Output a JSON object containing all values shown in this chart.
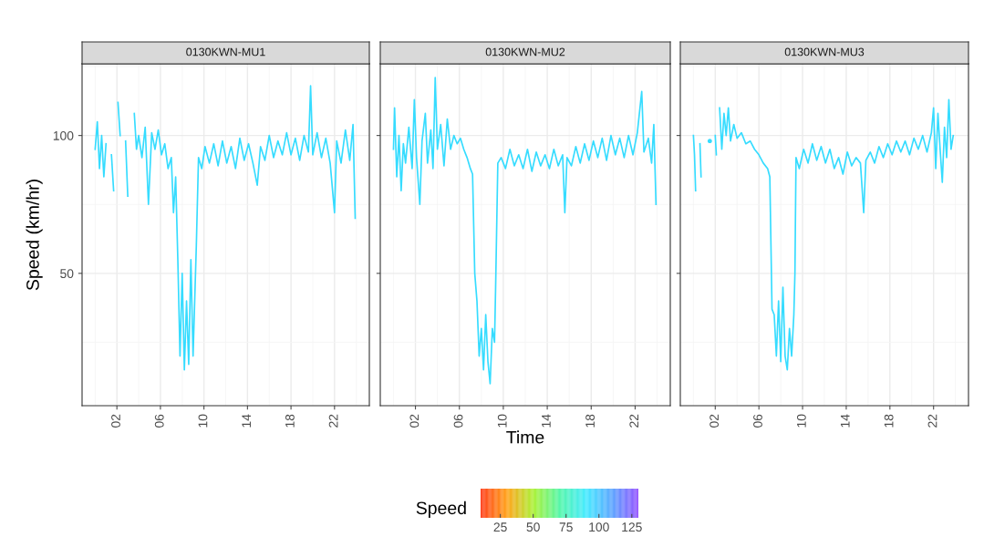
{
  "chart_data": [
    {
      "type": "line",
      "title": "0130KWN-MU1",
      "ylabel": "Speed (km/hr)",
      "xlim": [
        -1.2,
        25.2
      ],
      "ylim": [
        2,
        126
      ],
      "xticks": [
        {
          "value": 2,
          "label": "02"
        },
        {
          "value": 6,
          "label": "06"
        },
        {
          "value": 10,
          "label": "10"
        },
        {
          "value": 14,
          "label": "14"
        },
        {
          "value": 18,
          "label": "18"
        },
        {
          "value": 22,
          "label": "22"
        }
      ],
      "yticks": [
        50,
        100
      ],
      "grid": true,
      "color": "#36dcff",
      "x": [
        0.0,
        0.2,
        0.4,
        0.6,
        0.8,
        1.0,
        1.2,
        1.5,
        1.7,
        1.9,
        2.1,
        2.3,
        2.5,
        2.8,
        3.0,
        3.2,
        3.6,
        3.8,
        4.0,
        4.3,
        4.6,
        4.9,
        5.2,
        5.5,
        5.8,
        6.1,
        6.4,
        6.7,
        7.0,
        7.2,
        7.4,
        7.6,
        7.8,
        8.0,
        8.2,
        8.4,
        8.6,
        8.8,
        9.0,
        9.3,
        9.5,
        9.8,
        10.1,
        10.5,
        10.9,
        11.3,
        11.7,
        12.1,
        12.5,
        12.9,
        13.3,
        13.7,
        14.1,
        14.5,
        14.9,
        15.2,
        15.6,
        16.0,
        16.4,
        16.8,
        17.2,
        17.6,
        18.0,
        18.4,
        18.8,
        19.2,
        19.6,
        19.8,
        20.0,
        20.4,
        20.8,
        21.2,
        21.6,
        22.0,
        22.2,
        22.6,
        23.0,
        23.4,
        23.7,
        23.9
      ],
      "values": [
        95,
        105,
        88,
        100,
        85,
        97,
        null,
        93,
        80,
        null,
        112,
        100,
        null,
        98,
        78,
        null,
        108,
        95,
        100,
        92,
        103,
        75,
        101,
        95,
        102,
        93,
        97,
        88,
        92,
        72,
        85,
        55,
        20,
        50,
        15,
        40,
        17,
        55,
        20,
        60,
        92,
        88,
        96,
        90,
        97,
        89,
        98,
        90,
        96,
        88,
        99,
        91,
        97,
        90,
        82,
        96,
        91,
        100,
        92,
        98,
        93,
        101,
        93,
        99,
        91,
        100,
        94,
        118,
        93,
        101,
        92,
        99,
        90,
        72,
        98,
        90,
        102,
        91,
        104,
        70
      ]
    },
    {
      "type": "line",
      "title": "0130KWN-MU2",
      "xlabel": "Time",
      "clabel": "Speed",
      "xlim": [
        -1.2,
        25.2
      ],
      "ylim": [
        2,
        126
      ],
      "xticks": [
        {
          "value": 2,
          "label": "02"
        },
        {
          "value": 6,
          "label": "06"
        },
        {
          "value": 10,
          "label": "10"
        },
        {
          "value": 14,
          "label": "14"
        },
        {
          "value": 18,
          "label": "18"
        },
        {
          "value": 22,
          "label": "22"
        }
      ],
      "yticks": [
        50,
        100
      ],
      "tick_labels": "x",
      "grid": true,
      "color": "#36dcff",
      "clim": [
        10,
        130
      ],
      "cticks": [
        25,
        50,
        75,
        100,
        125
      ],
      "x": [
        0.0,
        0.1,
        0.3,
        0.5,
        0.7,
        0.9,
        1.1,
        1.4,
        1.7,
        1.9,
        2.1,
        2.4,
        2.6,
        2.9,
        3.1,
        3.4,
        3.6,
        3.8,
        4.0,
        4.3,
        4.6,
        4.9,
        5.2,
        5.5,
        5.8,
        6.1,
        6.4,
        6.7,
        7.0,
        7.2,
        7.4,
        7.6,
        7.8,
        8.0,
        8.2,
        8.4,
        8.6,
        8.8,
        9.0,
        9.2,
        9.3,
        9.5,
        9.8,
        10.2,
        10.6,
        11.0,
        11.4,
        11.8,
        12.2,
        12.6,
        13.0,
        13.4,
        13.8,
        14.2,
        14.6,
        15.0,
        15.4,
        15.6,
        15.8,
        16.2,
        16.6,
        17.0,
        17.4,
        17.8,
        18.2,
        18.6,
        19.0,
        19.4,
        19.8,
        20.2,
        20.6,
        21.0,
        21.4,
        21.8,
        22.2,
        22.6,
        22.8,
        23.2,
        23.5,
        23.7,
        23.9
      ],
      "values": [
        95,
        110,
        85,
        100,
        80,
        97,
        90,
        103,
        88,
        113,
        92,
        75,
        98,
        108,
        90,
        102,
        88,
        121,
        95,
        104,
        89,
        106,
        95,
        100,
        97,
        99,
        95,
        92,
        88,
        86,
        50,
        40,
        20,
        30,
        15,
        35,
        18,
        10,
        30,
        25,
        45,
        90,
        92,
        88,
        95,
        89,
        93,
        88,
        95,
        87,
        94,
        89,
        93,
        88,
        95,
        89,
        93,
        72,
        92,
        89,
        96,
        90,
        97,
        91,
        98,
        92,
        99,
        91,
        100,
        93,
        99,
        92,
        100,
        93,
        101,
        116,
        94,
        99,
        90,
        104,
        75
      ]
    },
    {
      "type": "line",
      "title": "0130KWN-MU3",
      "xlim": [
        -1.2,
        25.2
      ],
      "ylim": [
        2,
        126
      ],
      "xticks": [
        {
          "value": 2,
          "label": "02"
        },
        {
          "value": 6,
          "label": "06"
        },
        {
          "value": 10,
          "label": "10"
        },
        {
          "value": 14,
          "label": "14"
        },
        {
          "value": 18,
          "label": "18"
        },
        {
          "value": 22,
          "label": "22"
        }
      ],
      "yticks": [
        50,
        100
      ],
      "tick_labels": "x",
      "grid": true,
      "color": "#36dcff",
      "x": [
        0.0,
        0.1,
        0.2,
        0.3,
        0.6,
        0.7,
        0.8,
        1.5,
        1.6,
        2.0,
        2.1,
        2.2,
        2.4,
        2.6,
        2.8,
        3.0,
        3.2,
        3.4,
        3.7,
        4.0,
        4.4,
        4.8,
        5.2,
        5.6,
        6.0,
        6.4,
        6.8,
        7.0,
        7.2,
        7.4,
        7.6,
        7.8,
        8.0,
        8.2,
        8.4,
        8.6,
        8.8,
        9.0,
        9.2,
        9.3,
        9.4,
        9.7,
        10.1,
        10.5,
        10.9,
        11.3,
        11.7,
        12.1,
        12.5,
        12.9,
        13.3,
        13.7,
        14.1,
        14.5,
        14.9,
        15.3,
        15.6,
        15.8,
        16.2,
        16.6,
        17.0,
        17.4,
        17.8,
        18.2,
        18.6,
        19.0,
        19.4,
        19.8,
        20.2,
        20.6,
        21.0,
        21.4,
        21.8,
        22.0,
        22.2,
        22.4,
        22.6,
        22.8,
        23.0,
        23.2,
        23.4,
        23.6,
        23.8
      ],
      "values": [
        100,
        93,
        80,
        null,
        97,
        85,
        null,
        98,
        null,
        100,
        93,
        null,
        110,
        95,
        108,
        100,
        110,
        98,
        104,
        99,
        101,
        97,
        98,
        95,
        93,
        90,
        88,
        85,
        37,
        35,
        20,
        40,
        18,
        45,
        20,
        15,
        30,
        20,
        35,
        50,
        92,
        88,
        95,
        90,
        97,
        91,
        96,
        90,
        95,
        88,
        92,
        86,
        94,
        89,
        92,
        90,
        72,
        91,
        94,
        90,
        96,
        92,
        97,
        93,
        98,
        94,
        98,
        93,
        99,
        95,
        100,
        94,
        101,
        110,
        88,
        108,
        95,
        83,
        103,
        92,
        113,
        95,
        100
      ]
    }
  ]
}
